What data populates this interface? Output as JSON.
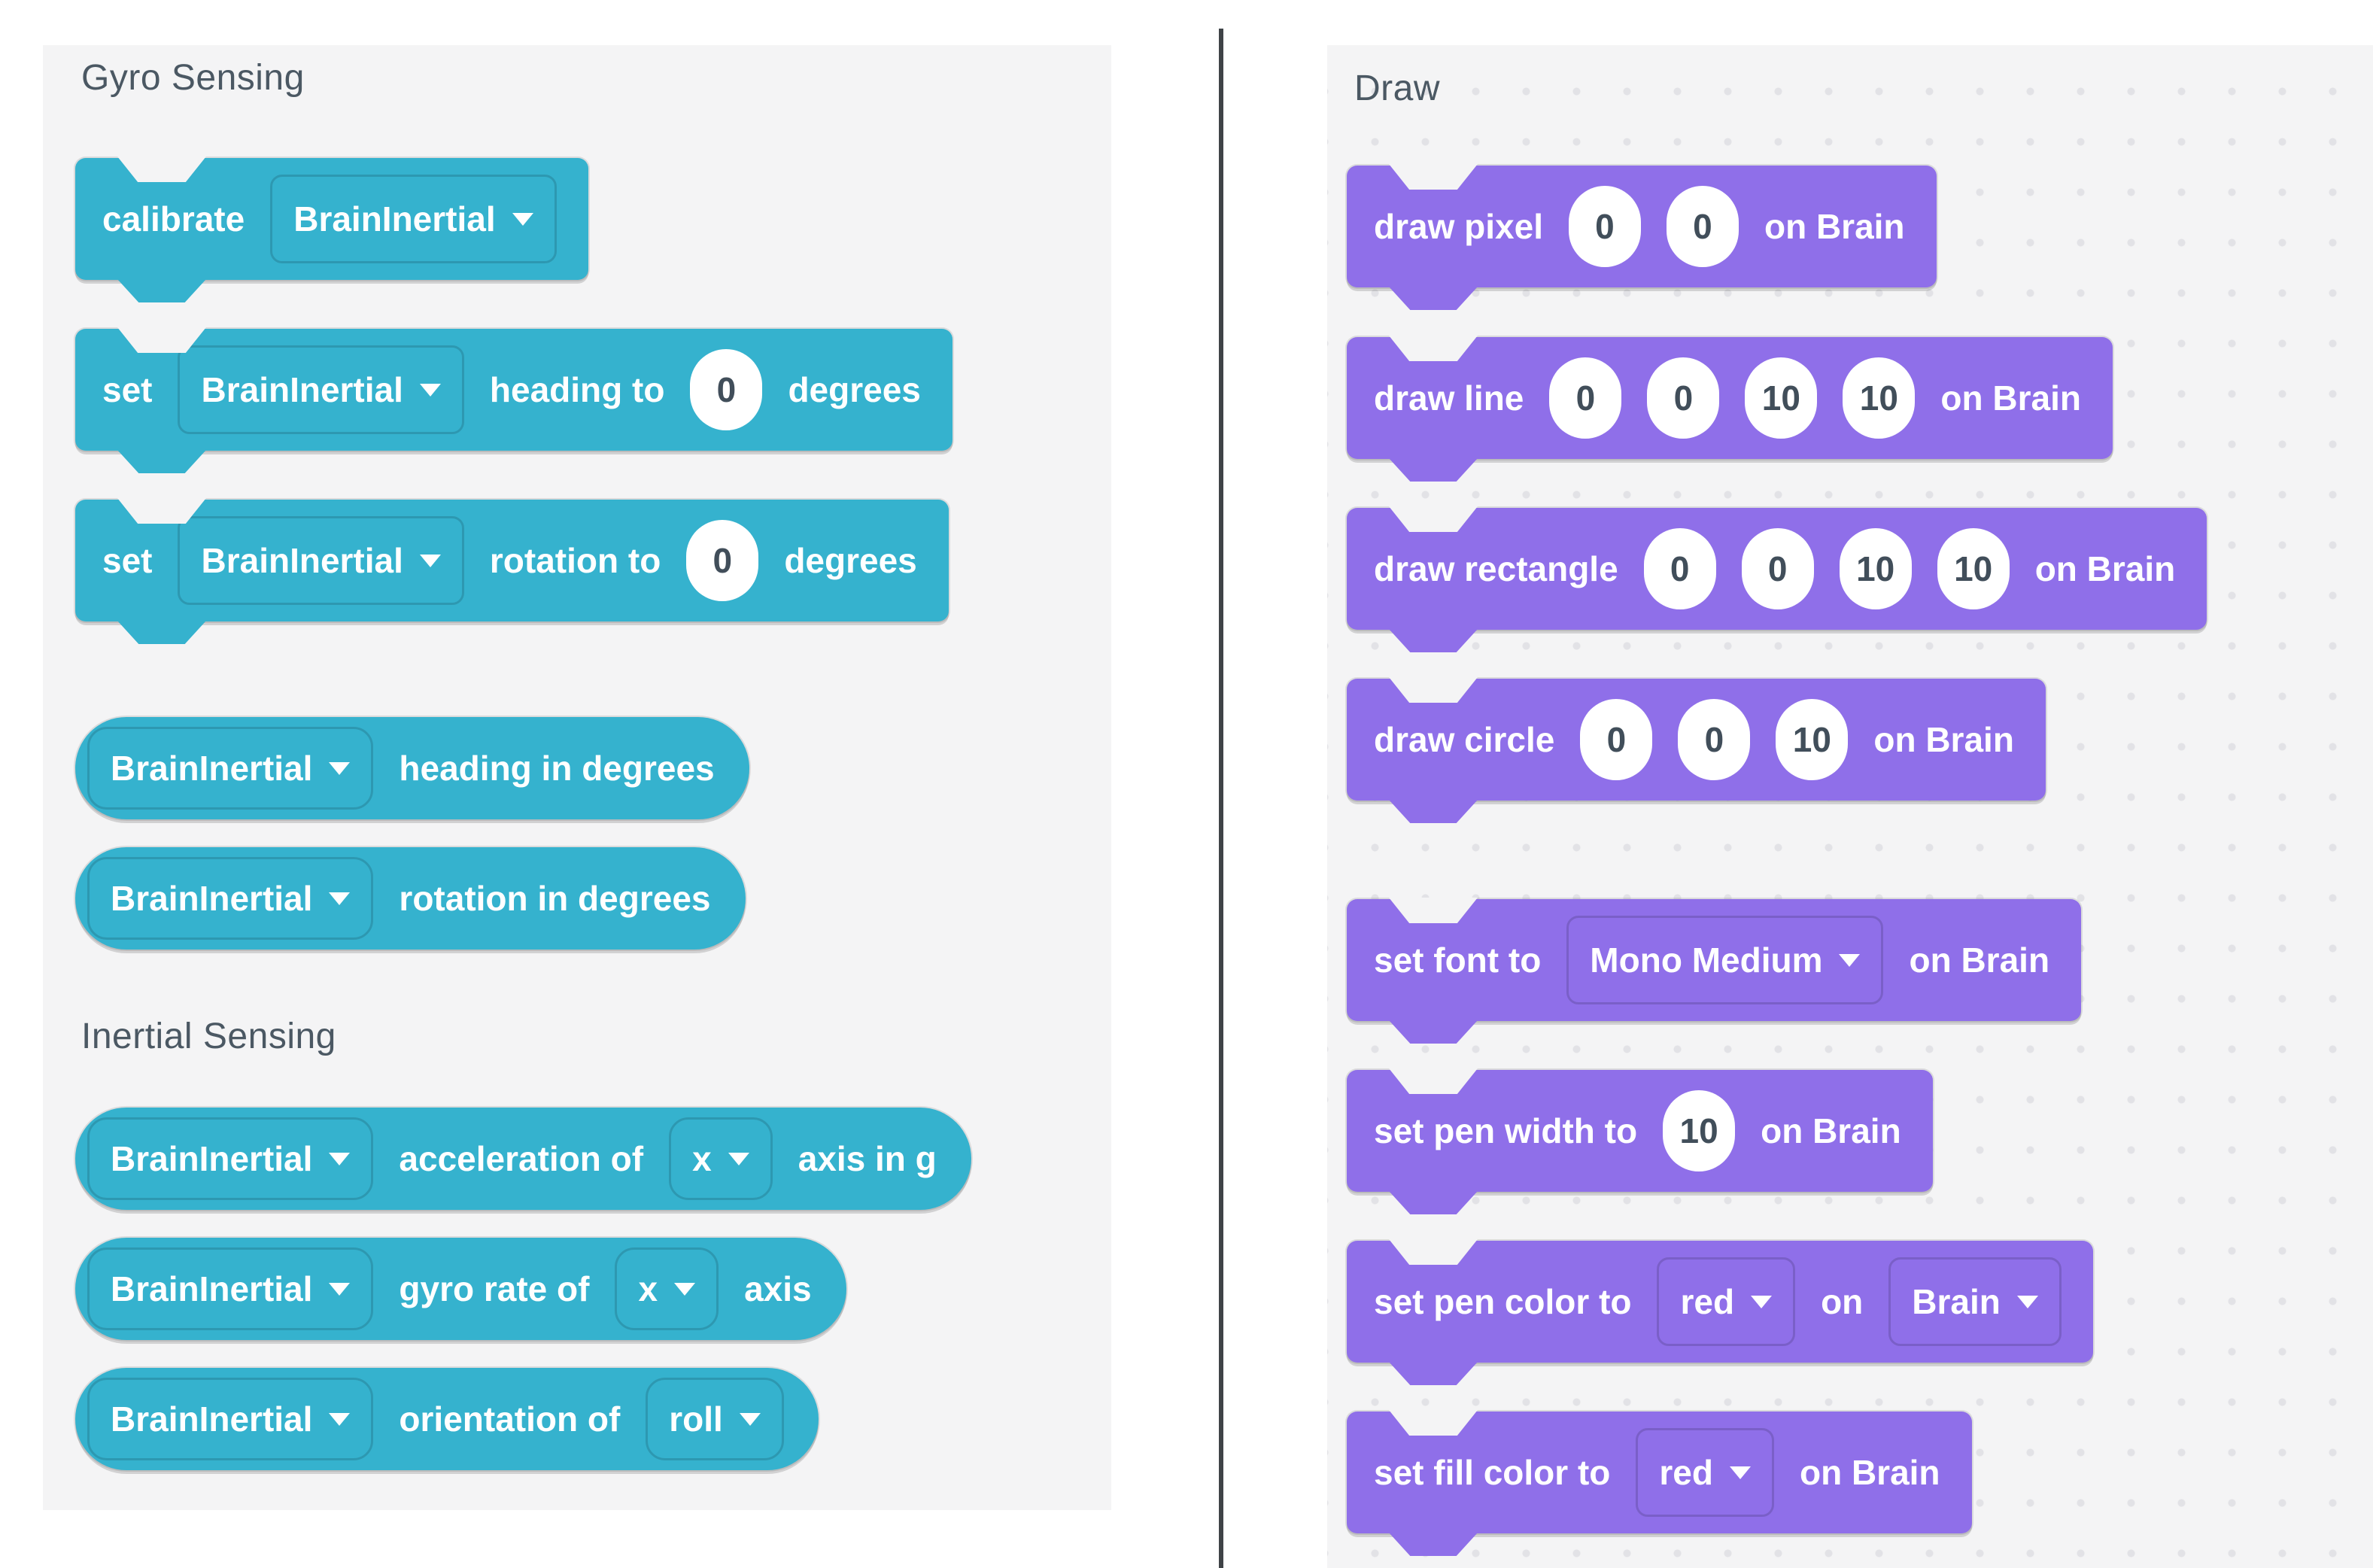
{
  "colors": {
    "accent_teal": "#35b2ce",
    "accent_purple": "#8f6fe9",
    "panel_bg": "#f4f4f5",
    "grid_dot": "#e2e2e6",
    "title_text": "#4b5863",
    "input_text": "#414e5a",
    "divider": "#3f4347"
  },
  "panels": {
    "left": {
      "section1": {
        "title": "Gyro Sensing"
      },
      "section2": {
        "title": "Inertial Sensing"
      },
      "blocks": [
        {
          "name": "calibrate",
          "shape": "stack",
          "color": "teal",
          "parts": [
            {
              "type": "label",
              "text": "calibrate"
            },
            {
              "type": "dropdown",
              "name": "device-dropdown",
              "text": "BrainInertial"
            }
          ]
        },
        {
          "name": "set-heading",
          "shape": "stack",
          "color": "teal",
          "parts": [
            {
              "type": "label",
              "text": "set"
            },
            {
              "type": "dropdown",
              "name": "device-dropdown",
              "text": "BrainInertial"
            },
            {
              "type": "label",
              "text": "heading to"
            },
            {
              "type": "input",
              "name": "heading-value-input",
              "text": "0"
            },
            {
              "type": "label",
              "text": "degrees"
            }
          ]
        },
        {
          "name": "set-rotation",
          "shape": "stack",
          "color": "teal",
          "parts": [
            {
              "type": "label",
              "text": "set"
            },
            {
              "type": "dropdown",
              "name": "device-dropdown",
              "text": "BrainInertial"
            },
            {
              "type": "label",
              "text": "rotation to"
            },
            {
              "type": "input",
              "name": "rotation-value-input",
              "text": "0"
            },
            {
              "type": "label",
              "text": "degrees"
            }
          ]
        },
        {
          "name": "heading-in-degrees",
          "shape": "reporter",
          "color": "teal",
          "parts": [
            {
              "type": "dropdown",
              "name": "device-dropdown",
              "text": "BrainInertial"
            },
            {
              "type": "label",
              "text": "heading in degrees"
            }
          ]
        },
        {
          "name": "rotation-in-degrees",
          "shape": "reporter",
          "color": "teal",
          "parts": [
            {
              "type": "dropdown",
              "name": "device-dropdown",
              "text": "BrainInertial"
            },
            {
              "type": "label",
              "text": "rotation in degrees"
            }
          ]
        },
        {
          "name": "acceleration-of",
          "shape": "reporter",
          "color": "teal",
          "parts": [
            {
              "type": "dropdown",
              "name": "device-dropdown",
              "text": "BrainInertial"
            },
            {
              "type": "label",
              "text": "acceleration of"
            },
            {
              "type": "dropdown",
              "name": "axis-dropdown",
              "text": "x"
            },
            {
              "type": "label",
              "text": "axis in g"
            }
          ]
        },
        {
          "name": "gyro-rate-of",
          "shape": "reporter",
          "color": "teal",
          "parts": [
            {
              "type": "dropdown",
              "name": "device-dropdown",
              "text": "BrainInertial"
            },
            {
              "type": "label",
              "text": "gyro rate of"
            },
            {
              "type": "dropdown",
              "name": "axis-dropdown",
              "text": "x"
            },
            {
              "type": "label",
              "text": "axis"
            }
          ]
        },
        {
          "name": "orientation-of",
          "shape": "reporter",
          "color": "teal",
          "parts": [
            {
              "type": "dropdown",
              "name": "device-dropdown",
              "text": "BrainInertial"
            },
            {
              "type": "label",
              "text": "orientation of"
            },
            {
              "type": "dropdown",
              "name": "orientation-dropdown",
              "text": "roll"
            }
          ]
        }
      ]
    },
    "right": {
      "title": "Draw",
      "blocks": [
        {
          "name": "draw-pixel",
          "shape": "stack",
          "color": "purple",
          "parts": [
            {
              "type": "label",
              "text": "draw pixel"
            },
            {
              "type": "input",
              "name": "x-input",
              "text": "0"
            },
            {
              "type": "input",
              "name": "y-input",
              "text": "0"
            },
            {
              "type": "label",
              "text": "on Brain"
            }
          ]
        },
        {
          "name": "draw-line",
          "shape": "stack",
          "color": "purple",
          "parts": [
            {
              "type": "label",
              "text": "draw line"
            },
            {
              "type": "input",
              "name": "x1-input",
              "text": "0"
            },
            {
              "type": "input",
              "name": "y1-input",
              "text": "0"
            },
            {
              "type": "input",
              "name": "x2-input",
              "text": "10"
            },
            {
              "type": "input",
              "name": "y2-input",
              "text": "10"
            },
            {
              "type": "label",
              "text": "on Brain"
            }
          ]
        },
        {
          "name": "draw-rectangle",
          "shape": "stack",
          "color": "purple",
          "parts": [
            {
              "type": "label",
              "text": "draw rectangle"
            },
            {
              "type": "input",
              "name": "x-input",
              "text": "0"
            },
            {
              "type": "input",
              "name": "y-input",
              "text": "0"
            },
            {
              "type": "input",
              "name": "width-input",
              "text": "10"
            },
            {
              "type": "input",
              "name": "height-input",
              "text": "10"
            },
            {
              "type": "label",
              "text": "on Brain"
            }
          ]
        },
        {
          "name": "draw-circle",
          "shape": "stack",
          "color": "purple",
          "parts": [
            {
              "type": "label",
              "text": "draw circle"
            },
            {
              "type": "input",
              "name": "x-input",
              "text": "0"
            },
            {
              "type": "input",
              "name": "y-input",
              "text": "0"
            },
            {
              "type": "input",
              "name": "radius-input",
              "text": "10"
            },
            {
              "type": "label",
              "text": "on Brain"
            }
          ]
        },
        {
          "name": "set-font",
          "shape": "stack",
          "color": "purple",
          "parts": [
            {
              "type": "label",
              "text": "set font to"
            },
            {
              "type": "dropdown",
              "name": "font-dropdown",
              "text": "Mono Medium"
            },
            {
              "type": "label",
              "text": "on Brain"
            }
          ]
        },
        {
          "name": "set-pen-width",
          "shape": "stack",
          "color": "purple",
          "parts": [
            {
              "type": "label",
              "text": "set pen width to"
            },
            {
              "type": "input",
              "name": "pen-width-input",
              "text": "10"
            },
            {
              "type": "label",
              "text": "on Brain"
            }
          ]
        },
        {
          "name": "set-pen-color",
          "shape": "stack",
          "color": "purple",
          "parts": [
            {
              "type": "label",
              "text": "set pen color to"
            },
            {
              "type": "dropdown",
              "name": "pen-color-dropdown",
              "text": "red"
            },
            {
              "type": "label",
              "text": "on"
            },
            {
              "type": "dropdown",
              "name": "device-dropdown",
              "text": "Brain"
            }
          ]
        },
        {
          "name": "set-fill-color",
          "shape": "stack",
          "color": "purple",
          "parts": [
            {
              "type": "label",
              "text": "set fill color to"
            },
            {
              "type": "dropdown",
              "name": "fill-color-dropdown",
              "text": "red"
            },
            {
              "type": "label",
              "text": "on Brain"
            }
          ]
        }
      ]
    }
  }
}
